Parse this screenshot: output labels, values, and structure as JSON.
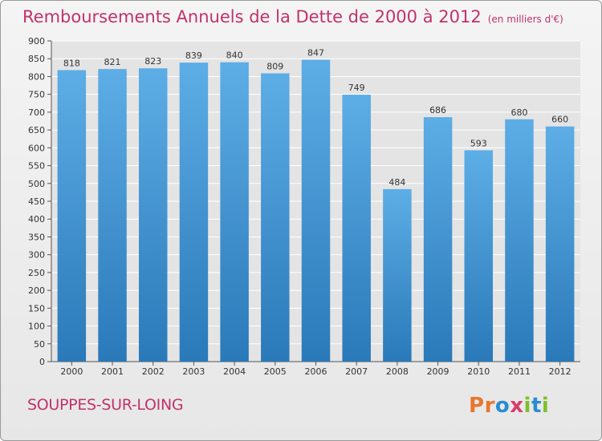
{
  "title": "Remboursements Annuels de la Dette de 2000 à 2012",
  "unit_note": "(en milliers d'€)",
  "commune": "SOUPPES-SUR-LOING",
  "logo": {
    "p": "P",
    "r": "r",
    "o": "o",
    "x": "x",
    "i1": "i",
    "t": "t",
    "i2": "i"
  },
  "colors": {
    "title": "#c0336a",
    "bar_top": "#5dade6",
    "bar_bottom": "#2a79b9",
    "grid": "#ffffff"
  },
  "chart_data": {
    "type": "bar",
    "categories": [
      "2000",
      "2001",
      "2002",
      "2003",
      "2004",
      "2005",
      "2006",
      "2007",
      "2008",
      "2009",
      "2010",
      "2011",
      "2012"
    ],
    "values": [
      818,
      821,
      823,
      839,
      840,
      809,
      847,
      749,
      484,
      686,
      593,
      680,
      660
    ],
    "title": "Remboursements Annuels de la Dette de 2000 à 2012",
    "ylim": [
      0,
      900
    ],
    "yticks": [
      0,
      50,
      100,
      150,
      200,
      250,
      300,
      350,
      400,
      450,
      500,
      550,
      600,
      650,
      700,
      750,
      800,
      850,
      900
    ],
    "grid": true,
    "data_labels": true
  }
}
